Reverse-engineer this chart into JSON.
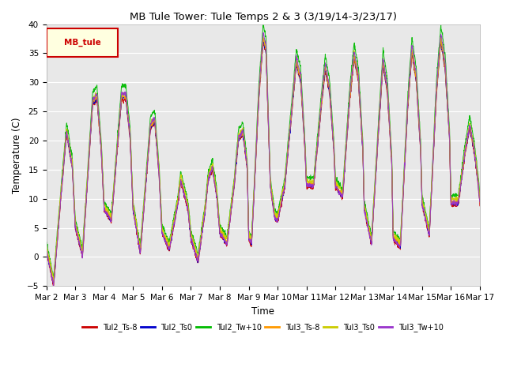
{
  "title": "MB Tule Tower: Tule Temps 2 & 3 (3/19/14-3/23/17)",
  "xlabel": "Time",
  "ylabel": "Temperature (C)",
  "ylim": [
    -5,
    40
  ],
  "yticks": [
    -5,
    0,
    5,
    10,
    15,
    20,
    25,
    30,
    35,
    40
  ],
  "xtick_labels": [
    "Mar 2",
    "Mar 3",
    "Mar 4",
    "Mar 5",
    "Mar 6",
    "Mar 7",
    "Mar 8",
    "Mar 9",
    "Mar 10",
    "Mar 11",
    "Mar 12",
    "Mar 13",
    "Mar 14",
    "Mar 15",
    "Mar 16",
    "Mar 17"
  ],
  "legend_label": "MB_tule",
  "series": [
    {
      "name": "Tul2_Ts-8",
      "color": "#cc0000"
    },
    {
      "name": "Tul2_Ts0",
      "color": "#0000cc"
    },
    {
      "name": "Tul2_Tw+10",
      "color": "#00bb00"
    },
    {
      "name": "Tul3_Ts-8",
      "color": "#ff9900"
    },
    {
      "name": "Tul3_Ts0",
      "color": "#cccc00"
    },
    {
      "name": "Tul3_Tw+10",
      "color": "#9933cc"
    }
  ],
  "background_color": "#ffffff",
  "plot_bg_color": "#e8e8e8"
}
